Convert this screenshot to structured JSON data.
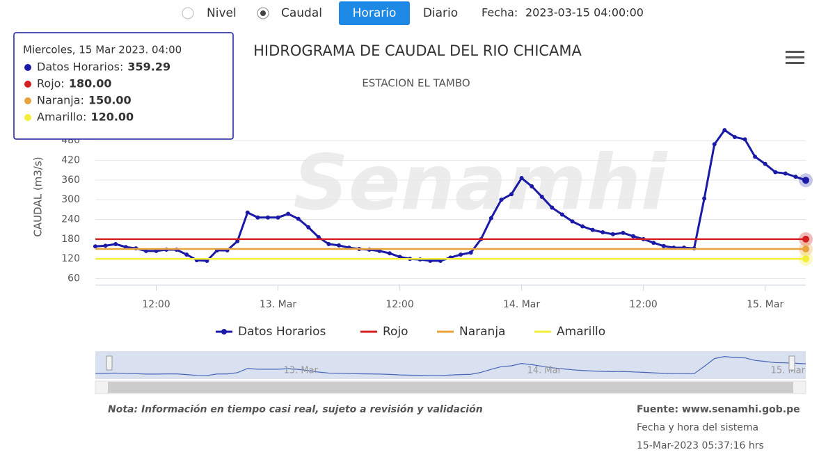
{
  "controls": {
    "options": [
      "Nivel",
      "Caudal"
    ],
    "buttons": [
      "Horario",
      "Diario"
    ],
    "date_label": "Fecha:",
    "date": "2023-03-15 04:00:00"
  },
  "chart_data": {
    "type": "line",
    "title": "HIDROGRAMA DE CAUDAL DEL RIO CHICAMA",
    "subtitle": "ESTACION EL TAMBO",
    "y_label": "CAUDAL (m3/s)",
    "watermark": "Senamhi",
    "x": [
      "2023-03-12T06:00",
      "2023-03-12T07:00",
      "2023-03-12T08:00",
      "2023-03-12T09:00",
      "2023-03-12T10:00",
      "2023-03-12T11:00",
      "2023-03-12T12:00",
      "2023-03-12T13:00",
      "2023-03-12T14:00",
      "2023-03-12T15:00",
      "2023-03-12T16:00",
      "2023-03-12T17:00",
      "2023-03-12T18:00",
      "2023-03-12T19:00",
      "2023-03-12T20:00",
      "2023-03-12T21:00",
      "2023-03-12T22:00",
      "2023-03-12T23:00",
      "2023-03-13T00:00",
      "2023-03-13T01:00",
      "2023-03-13T02:00",
      "2023-03-13T03:00",
      "2023-03-13T04:00",
      "2023-03-13T05:00",
      "2023-03-13T06:00",
      "2023-03-13T07:00",
      "2023-03-13T08:00",
      "2023-03-13T09:00",
      "2023-03-13T10:00",
      "2023-03-13T11:00",
      "2023-03-13T12:00",
      "2023-03-13T13:00",
      "2023-03-13T14:00",
      "2023-03-13T15:00",
      "2023-03-13T16:00",
      "2023-03-13T17:00",
      "2023-03-13T18:00",
      "2023-03-13T19:00",
      "2023-03-13T20:00",
      "2023-03-13T21:00",
      "2023-03-13T22:00",
      "2023-03-13T23:00",
      "2023-03-14T00:00",
      "2023-03-14T01:00",
      "2023-03-14T02:00",
      "2023-03-14T03:00",
      "2023-03-14T04:00",
      "2023-03-14T05:00",
      "2023-03-14T06:00",
      "2023-03-14T07:00",
      "2023-03-14T08:00",
      "2023-03-14T09:00",
      "2023-03-14T10:00",
      "2023-03-14T11:00",
      "2023-03-14T12:00",
      "2023-03-14T13:00",
      "2023-03-14T14:00",
      "2023-03-14T15:00",
      "2023-03-14T16:00",
      "2023-03-14T17:00",
      "2023-03-14T18:00",
      "2023-03-14T19:00",
      "2023-03-14T20:00",
      "2023-03-14T21:00",
      "2023-03-14T22:00",
      "2023-03-14T23:00",
      "2023-03-15T00:00",
      "2023-03-15T01:00",
      "2023-03-15T02:00",
      "2023-03-15T03:00",
      "2023-03-15T04:00"
    ],
    "series": [
      {
        "name": "Datos Horarios",
        "color": "#1a1aa6",
        "values": [
          158,
          160,
          165,
          156,
          152,
          144,
          144,
          148,
          148,
          133,
          116,
          114,
          146,
          146,
          174,
          261,
          246,
          246,
          246,
          257,
          242,
          216,
          186,
          165,
          161,
          154,
          150,
          148,
          144,
          137,
          126,
          120,
          118,
          114,
          114,
          124,
          133,
          139,
          180,
          244,
          300,
          317,
          366,
          341,
          309,
          276,
          255,
          234,
          219,
          208,
          201,
          195,
          199,
          189,
          180,
          169,
          159,
          154,
          154,
          152,
          304,
          469,
          512,
          491,
          484,
          431,
          409,
          384,
          380,
          370,
          359.29
        ]
      },
      {
        "name": "Rojo",
        "color": "#d42020",
        "value": 180
      },
      {
        "name": "Naranja",
        "color": "#e8a33d",
        "value": 150
      },
      {
        "name": "Amarillo",
        "color": "#f3ee3a",
        "value": 120
      }
    ],
    "xlim": [
      "2023-03-12T06:00",
      "2023-03-15T04:00"
    ],
    "xticks": [
      {
        "value": "2023-03-12T12:00",
        "label": "12:00"
      },
      {
        "value": "2023-03-13T00:00",
        "label": "13. Mar"
      },
      {
        "value": "2023-03-13T12:00",
        "label": "12:00"
      },
      {
        "value": "2023-03-14T00:00",
        "label": "14. Mar"
      },
      {
        "value": "2023-03-14T12:00",
        "label": "12:00"
      },
      {
        "value": "2023-03-15T00:00",
        "label": "15. Mar"
      }
    ],
    "ylim": [
      40,
      580
    ],
    "yticks": [
      60,
      120,
      180,
      240,
      300,
      360,
      420,
      480
    ],
    "grid": true,
    "tooltip": {
      "title": "Miercoles, 15 Mar 2023. 04:00",
      "items": [
        {
          "label": "Datos Horarios:",
          "value_label": "359.29"
        },
        {
          "label": "Rojo:",
          "value_label": "180.00"
        },
        {
          "label": "Naranja:",
          "value_label": "150.00"
        },
        {
          "label": "Amarillo:",
          "value_label": "120.00"
        }
      ]
    }
  },
  "footer": {
    "note": "Nota: Información en tiempo casi real, sujeto a revisión y validación",
    "source": "Fuente: www.senamhi.gob.pe",
    "system_time_label": "Fecha y hora del sistema",
    "system_time": "15-Mar-2023 05:37:16 hrs"
  }
}
